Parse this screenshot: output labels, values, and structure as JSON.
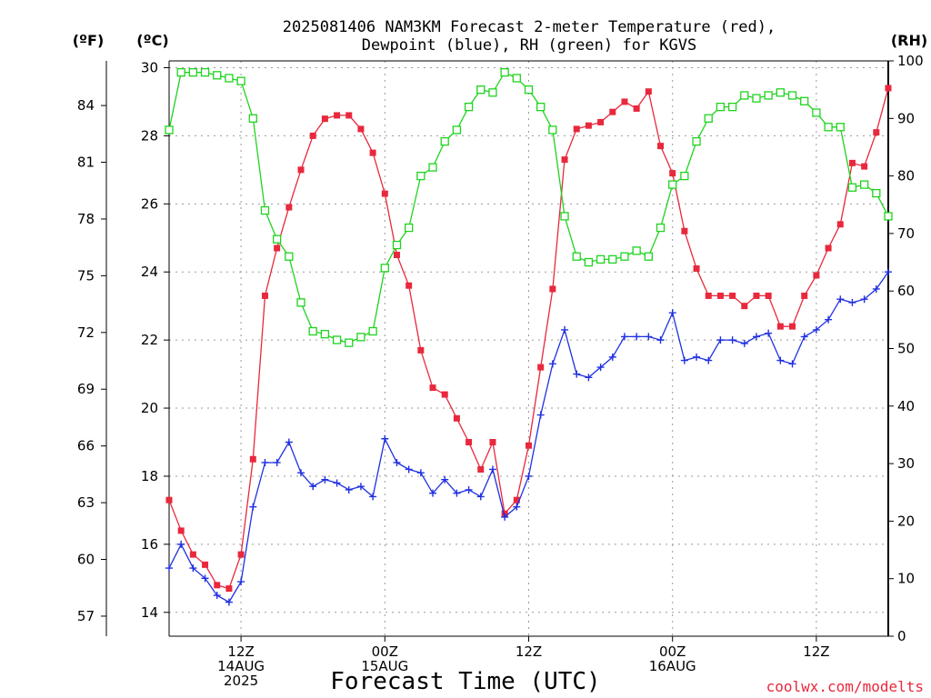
{
  "chart_data": {
    "type": "line",
    "title": [
      "2025081406 NAM3KM Forecast 2-meter Temperature (red),",
      "Dewpoint (blue), RH (green) for KGVS"
    ],
    "xlabel": "Forecast Time (UTC)",
    "x_ticks": [
      {
        "hour": 6,
        "lines": [
          "12Z",
          "14AUG",
          "2025"
        ]
      },
      {
        "hour": 18,
        "lines": [
          "00Z",
          "15AUG"
        ]
      },
      {
        "hour": 30,
        "lines": [
          "12Z"
        ]
      },
      {
        "hour": 42,
        "lines": [
          "00Z",
          "16AUG"
        ]
      },
      {
        "hour": 54,
        "lines": [
          "12Z"
        ]
      }
    ],
    "x_units": "forecast hour",
    "xlim": [
      0,
      60
    ],
    "axes": {
      "left_f": {
        "label": "(ºF)",
        "ticks": [
          57,
          60,
          63,
          66,
          69,
          72,
          75,
          78,
          81,
          84
        ]
      },
      "left_c": {
        "label": "(ºC)",
        "ticks": [
          14,
          16,
          18,
          20,
          22,
          24,
          26,
          28,
          30
        ],
        "ylim": [
          13.3,
          30.2
        ]
      },
      "right_rh": {
        "label": "(RH)",
        "ticks": [
          0,
          10,
          20,
          30,
          40,
          50,
          60,
          70,
          80,
          90,
          100
        ],
        "ylim": [
          0,
          100
        ]
      }
    },
    "series": [
      {
        "name": "Temperature",
        "axis": "left_c",
        "color": "#e8283c",
        "marker": "filled-square",
        "x": [
          0,
          1,
          2,
          3,
          4,
          5,
          6,
          7,
          8,
          9,
          10,
          11,
          12,
          13,
          14,
          15,
          16,
          17,
          18,
          19,
          20,
          21,
          22,
          23,
          24,
          25,
          26,
          27,
          28,
          29,
          30,
          31,
          32,
          33,
          34,
          35,
          36,
          37,
          38,
          39,
          40,
          41,
          42,
          43,
          44,
          45,
          46,
          47,
          48,
          49,
          50,
          51,
          52,
          53,
          54,
          55,
          56,
          57,
          58,
          59,
          60
        ],
        "values": [
          17.3,
          16.4,
          15.7,
          15.4,
          14.8,
          14.7,
          15.7,
          18.5,
          23.3,
          24.7,
          25.9,
          27.0,
          28.0,
          28.5,
          28.6,
          28.6,
          28.2,
          27.5,
          26.3,
          24.5,
          23.6,
          21.7,
          20.6,
          20.4,
          19.7,
          19.0,
          18.2,
          19.0,
          16.9,
          17.3,
          18.9,
          21.2,
          23.5,
          27.3,
          28.2,
          28.3,
          28.4,
          28.7,
          29.0,
          28.8,
          29.3,
          27.7,
          26.9,
          25.2,
          24.1,
          23.3,
          23.3,
          23.3,
          23.0,
          23.3,
          23.3,
          22.4,
          22.4,
          23.3,
          23.9,
          24.7,
          25.4,
          27.2,
          27.1,
          28.1,
          29.4
        ]
      },
      {
        "name": "Dewpoint",
        "axis": "left_c",
        "color": "#2030e0",
        "marker": "plus",
        "x": [
          0,
          1,
          2,
          3,
          4,
          5,
          6,
          7,
          8,
          9,
          10,
          11,
          12,
          13,
          14,
          15,
          16,
          17,
          18,
          19,
          20,
          21,
          22,
          23,
          24,
          25,
          26,
          27,
          28,
          29,
          30,
          31,
          32,
          33,
          34,
          35,
          36,
          37,
          38,
          39,
          40,
          41,
          42,
          43,
          44,
          45,
          46,
          47,
          48,
          49,
          50,
          51,
          52,
          53,
          54,
          55,
          56,
          57,
          58,
          59,
          60
        ],
        "values": [
          15.3,
          16.0,
          15.3,
          15.0,
          14.5,
          14.3,
          14.9,
          17.1,
          18.4,
          18.4,
          19.0,
          18.1,
          17.7,
          17.9,
          17.8,
          17.6,
          17.7,
          17.4,
          19.1,
          18.4,
          18.2,
          18.1,
          17.5,
          17.9,
          17.5,
          17.6,
          17.4,
          18.2,
          16.8,
          17.1,
          18.0,
          19.8,
          21.3,
          22.3,
          21.0,
          20.9,
          21.2,
          21.5,
          22.1,
          22.1,
          22.1,
          22.0,
          22.8,
          21.4,
          21.5,
          21.4,
          22.0,
          22.0,
          21.9,
          22.1,
          22.2,
          21.4,
          21.3,
          22.1,
          22.3,
          22.6,
          23.2,
          23.1,
          23.2,
          23.5,
          24.0
        ]
      },
      {
        "name": "RH",
        "axis": "right_rh",
        "color": "#1ed41e",
        "marker": "open-square",
        "x": [
          0,
          1,
          2,
          3,
          4,
          5,
          6,
          7,
          8,
          9,
          10,
          11,
          12,
          13,
          14,
          15,
          16,
          17,
          18,
          19,
          20,
          21,
          22,
          23,
          24,
          25,
          26,
          27,
          28,
          29,
          30,
          31,
          32,
          33,
          34,
          35,
          36,
          37,
          38,
          39,
          40,
          41,
          42,
          43,
          44,
          45,
          46,
          47,
          48,
          49,
          50,
          51,
          52,
          53,
          54,
          55,
          56,
          57,
          58,
          59,
          60
        ],
        "values": [
          88,
          98,
          98,
          98,
          97.5,
          97,
          96.5,
          90,
          74,
          69,
          66,
          58,
          53,
          52.5,
          51.5,
          51,
          52,
          53,
          64,
          68,
          71,
          80,
          81.5,
          86,
          88,
          92,
          95,
          94.5,
          98,
          97,
          95,
          92,
          88,
          73,
          66,
          65,
          65.5,
          65.5,
          66,
          67,
          66,
          71,
          78.5,
          80,
          86,
          90,
          92,
          92,
          94,
          93.5,
          94,
          94.5,
          94,
          93,
          91,
          88.5,
          88.5,
          78,
          78.5,
          77,
          73
        ]
      }
    ],
    "credit": "coolwx.com/modelts"
  }
}
